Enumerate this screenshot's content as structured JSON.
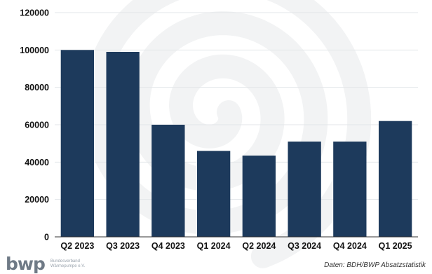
{
  "chart_data": {
    "type": "bar",
    "categories": [
      "Q2 2023",
      "Q3 2023",
      "Q4 2023",
      "Q1 2024",
      "Q2 2024",
      "Q3 2024",
      "Q4 2024",
      "Q1 2025"
    ],
    "values": [
      100000,
      99000,
      60000,
      46000,
      43500,
      51000,
      51000,
      62000
    ],
    "y_ticks": [
      "0",
      "20000",
      "40000",
      "60000",
      "80000",
      "100000",
      "120000"
    ],
    "ylim": [
      0,
      120000
    ],
    "grid": true,
    "legend": "none",
    "bar_color": "#1d3a5c",
    "gridline_color": "#e3e6e9"
  },
  "footer": {
    "logo_mark": "bwp",
    "logo_line1": "Bundesverband",
    "logo_line2": "Wärmepumpe e.V.",
    "source": "Daten: BDH/BWP Absatzstatistik"
  }
}
